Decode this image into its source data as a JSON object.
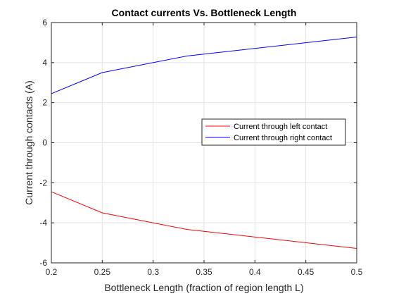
{
  "chart_data": {
    "type": "line",
    "title": "Contact currents Vs. Bottleneck Length",
    "xlabel": "Bottleneck Length (fraction of region length L)",
    "ylabel": "Current through contacts (A)",
    "xlim": [
      0.2,
      0.5
    ],
    "ylim": [
      -6,
      6
    ],
    "xticks": [
      0.2,
      0.25,
      0.3,
      0.35,
      0.4,
      0.45,
      0.5
    ],
    "xtick_labels": [
      "0.2",
      "0.25",
      "0.3",
      "0.35",
      "0.4",
      "0.45",
      "0.5"
    ],
    "yticks": [
      -6,
      -4,
      -2,
      0,
      2,
      4,
      6
    ],
    "ytick_labels": [
      "-6",
      "-4",
      "-2",
      "0",
      "2",
      "4",
      "6"
    ],
    "grid": true,
    "legend_position": "right",
    "series": [
      {
        "name": "Current through left contact",
        "color": "#ff0000",
        "x": [
          0.2,
          0.25,
          0.333,
          0.5
        ],
        "y": [
          -2.45,
          -3.5,
          -4.33,
          -5.28
        ]
      },
      {
        "name": "Current through right contact",
        "color": "#0000ff",
        "x": [
          0.2,
          0.25,
          0.333,
          0.5
        ],
        "y": [
          2.45,
          3.5,
          4.33,
          5.28
        ]
      }
    ]
  }
}
